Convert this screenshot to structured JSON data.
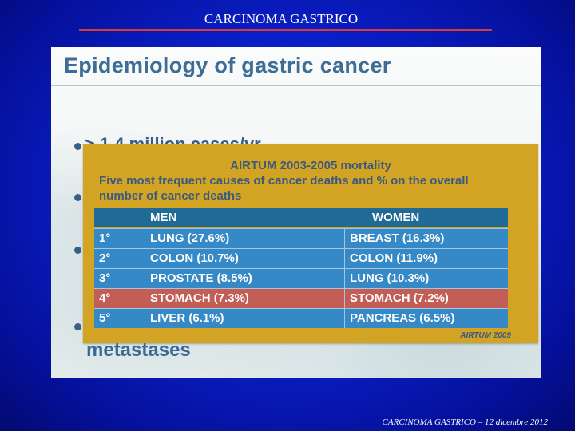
{
  "slide": {
    "title": "CARCINOMA GASTRICO",
    "footer": "CARCINOMA GASTRICO – 12 dicembre 2012",
    "accent_color": "#d83a3a"
  },
  "photo": {
    "heading": "Epidemiology of gastric cancer",
    "bullet_partial_text": "> 1.4 million cases/yr",
    "bullet_bottom_text": "metastases"
  },
  "inset": {
    "heading": "AIRTUM 2003-2005 mortality",
    "subheading": "Five most frequent causes of cancer deaths and % on the overall number of cancer deaths",
    "source": "AIRTUM 2009",
    "table": {
      "headers": {
        "rank": "",
        "men": "MEN",
        "women": "WOMEN"
      },
      "rows": [
        {
          "rank": "1°",
          "men": "LUNG  (27.6%)",
          "women": "BREAST  (16.3%)",
          "highlight": false
        },
        {
          "rank": "2°",
          "men": "COLON  (10.7%)",
          "women": "COLON  (11.9%)",
          "highlight": false
        },
        {
          "rank": "3°",
          "men": "PROSTATE  (8.5%)",
          "women": "LUNG  (10.3%)",
          "highlight": false
        },
        {
          "rank": "4°",
          "men": "STOMACH  (7.3%)",
          "women": "STOMACH  (7.2%)",
          "highlight": true
        },
        {
          "rank": "5°",
          "men": "LIVER  (6.1%)",
          "women": "PANCREAS  (6.5%)",
          "highlight": false
        }
      ]
    }
  }
}
